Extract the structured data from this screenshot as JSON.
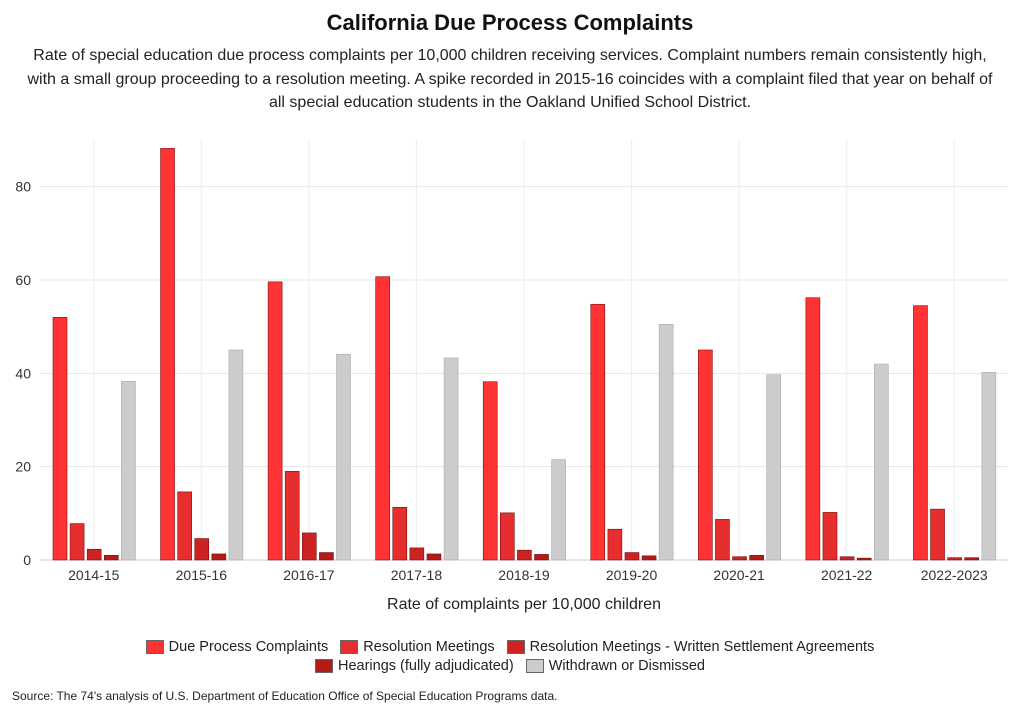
{
  "title": "California Due Process Complaints",
  "subtitle": "Rate of special education due process complaints per 10,000 children receiving services. Complaint numbers remain consistently high, with a small group proceeding to a resolution meeting. A spike recorded in 2015-16 coincides with a complaint filed that year on behalf of all special education students in the Oakland Unified School District.",
  "source": "Source: The 74's analysis of U.S. Department of Education Office of Special Education Programs data.",
  "chart_data": {
    "type": "bar",
    "title": "California Due Process Complaints",
    "xlabel": "Rate of complaints per 10,000 children",
    "ylabel": "",
    "ylim": [
      0,
      90
    ],
    "yticks": [
      0,
      20,
      40,
      60,
      80
    ],
    "grid": true,
    "legend": "bottom",
    "categories": [
      "2014-15",
      "2015-16",
      "2016-17",
      "2017-18",
      "2018-19",
      "2019-20",
      "2020-21",
      "2021-22",
      "2022-2023"
    ],
    "series": [
      {
        "name": "Due Process Complaints",
        "color": "#ff3333",
        "values": [
          52.0,
          88.2,
          59.6,
          60.7,
          38.2,
          54.8,
          45.0,
          56.2,
          54.5
        ]
      },
      {
        "name": "Resolution Meetings",
        "color": "#e62e2e",
        "values": [
          7.8,
          14.6,
          19.0,
          11.3,
          10.1,
          6.6,
          8.7,
          10.2,
          10.9
        ]
      },
      {
        "name": "Resolution Meetings - Written Settlement Agreements",
        "color": "#cc2222",
        "values": [
          2.3,
          4.6,
          5.8,
          2.6,
          2.1,
          1.6,
          0.7,
          0.7,
          0.5
        ]
      },
      {
        "name": "Hearings (fully adjudicated)",
        "color": "#b31a1a",
        "values": [
          1.0,
          1.3,
          1.6,
          1.3,
          1.2,
          0.9,
          1.0,
          0.4,
          0.5
        ]
      },
      {
        "name": "Withdrawn or Dismissed",
        "color": "#cccccc",
        "values": [
          38.3,
          45.0,
          44.1,
          43.3,
          21.5,
          50.5,
          39.7,
          42.0,
          40.2
        ]
      }
    ]
  }
}
